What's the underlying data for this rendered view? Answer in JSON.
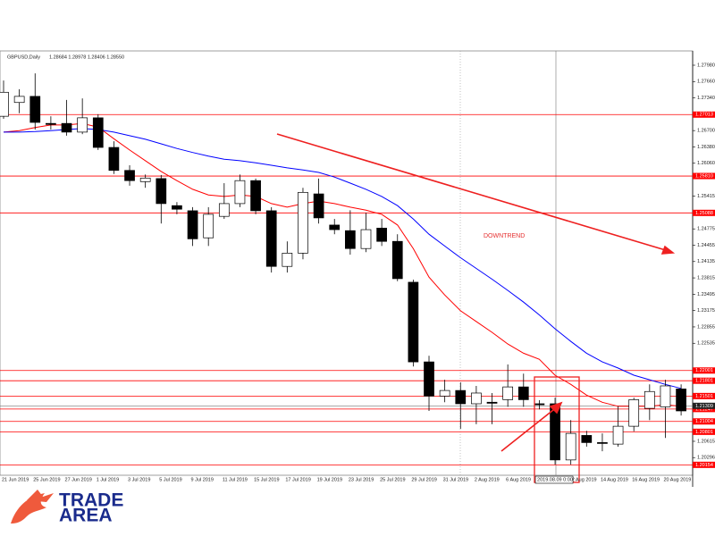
{
  "chart_data": {
    "type": "candlestick",
    "title": "GBPUSD,Daily",
    "header_values": "1.28684 1.28978 1.28406 1.28550",
    "annotation": "DOWNTREND",
    "crosshair_label": "2019.08.09 0:00",
    "categories": [
      "21 Jun 2019",
      null,
      "25 Jun 2019",
      null,
      "27 Jun 2019",
      null,
      "1 Jul 2019",
      null,
      "3 Jul 2019",
      null,
      "5 Jul 2019",
      null,
      "9 Jul 2019",
      null,
      "11 Jul 2019",
      null,
      "15 Jul 2019",
      null,
      "17 Jul 2019",
      null,
      "19 Jul 2019",
      null,
      "23 Jul 2019",
      null,
      "25 Jul 2019",
      null,
      "29 Jul 2019",
      null,
      "31 Jul 2019",
      null,
      "2 Aug 2019",
      null,
      "6 Aug 2019",
      null,
      null,
      null,
      "12 Aug 2019",
      null,
      "14 Aug 2019",
      null,
      "16 Aug 2019",
      null,
      "20 Aug 2019",
      null
    ],
    "open": [
      1.2698,
      1.2725,
      1.2737,
      1.2684,
      1.2684,
      1.2667,
      1.2695,
      1.2637,
      1.2592,
      1.257,
      1.2576,
      1.2523,
      1.2513,
      1.246,
      1.2502,
      1.2527,
      1.2572,
      1.2513,
      1.2404,
      1.243,
      1.2546,
      1.2485,
      1.2474,
      1.2439,
      1.2479,
      1.2453,
      1.2373,
      1.2217,
      1.215,
      1.2161,
      1.2135,
      1.2138,
      1.2143,
      1.2168,
      1.2135,
      1.2135,
      1.2025,
      1.2073,
      1.2059,
      1.2056,
      1.2091,
      1.2126,
      1.2129,
      1.2164
    ],
    "high": [
      1.2768,
      1.2751,
      1.2782,
      1.2698,
      1.273,
      1.2733,
      1.2702,
      1.2649,
      1.2602,
      1.2584,
      1.2583,
      1.253,
      1.252,
      1.252,
      1.2567,
      1.2584,
      1.2576,
      1.252,
      1.2453,
      1.2558,
      1.2576,
      1.2497,
      1.2514,
      1.2509,
      1.2497,
      1.2467,
      1.2378,
      1.2229,
      1.2182,
      1.2177,
      1.217,
      1.2156,
      1.2212,
      1.2194,
      1.2142,
      1.2147,
      1.2103,
      1.2082,
      1.2077,
      1.213,
      1.2147,
      1.2173,
      1.2182,
      1.2173
    ],
    "low": [
      1.2693,
      1.2704,
      1.2672,
      1.2672,
      1.266,
      1.2663,
      1.2632,
      1.2585,
      1.2562,
      1.2558,
      1.2488,
      1.2506,
      1.2444,
      1.2444,
      1.2497,
      1.252,
      1.2506,
      1.2392,
      1.2392,
      1.2418,
      1.2488,
      1.2467,
      1.2427,
      1.2432,
      1.2444,
      1.2375,
      1.2208,
      1.2121,
      1.2138,
      1.2086,
      1.2095,
      1.2095,
      1.2129,
      1.2129,
      1.2124,
      1.2016,
      1.2016,
      1.2051,
      1.2042,
      1.2051,
      1.2081,
      1.2103,
      1.2068,
      1.2112
    ],
    "close": [
      1.2745,
      1.2737,
      1.2686,
      1.2682,
      1.2667,
      1.2695,
      1.2637,
      1.2592,
      1.2572,
      1.2577,
      1.2527,
      1.2516,
      1.2458,
      1.2506,
      1.2527,
      1.2572,
      1.2513,
      1.2404,
      1.243,
      1.2549,
      1.2499,
      1.2476,
      1.2439,
      1.2476,
      1.2453,
      1.238,
      1.2217,
      1.215,
      1.2161,
      1.2135,
      1.2156,
      1.2136,
      1.2168,
      1.2143,
      1.2133,
      1.2025,
      1.2077,
      1.2059,
      1.2058,
      1.2091,
      1.2143,
      1.2159,
      1.217,
      1.2121
    ],
    "up_color": "#ffffff",
    "down_color": "#000000",
    "series": [
      {
        "color": "#ff0000",
        "values": [
          1.2667,
          1.267,
          1.2676,
          1.2681,
          1.2681,
          1.2684,
          1.2677,
          1.2654,
          1.2632,
          1.2611,
          1.259,
          1.2572,
          1.2555,
          1.2544,
          1.2541,
          1.2544,
          1.2541,
          1.2527,
          1.252,
          1.2527,
          1.2532,
          1.2527,
          1.252,
          1.2514,
          1.2506,
          1.2485,
          1.2439,
          1.2383,
          1.2348,
          1.2317,
          1.2296,
          1.2275,
          1.2252,
          1.2234,
          1.2222,
          1.2191,
          1.2173,
          1.2152,
          1.2138,
          1.213,
          1.213,
          1.213,
          1.2133,
          1.213
        ]
      },
      {
        "color": "#0000ff",
        "values": [
          1.2667,
          1.2667,
          1.2668,
          1.267,
          1.2672,
          1.2674,
          1.2672,
          1.2667,
          1.266,
          1.2653,
          1.2644,
          1.2635,
          1.2627,
          1.262,
          1.2614,
          1.2611,
          1.2607,
          1.2602,
          1.2597,
          1.2593,
          1.2588,
          1.2579,
          1.2567,
          1.2555,
          1.2541,
          1.2523,
          1.2497,
          1.2467,
          1.2444,
          1.2421,
          1.24,
          1.2379,
          1.2357,
          1.2334,
          1.2309,
          1.2282,
          1.2257,
          1.2234,
          1.2217,
          1.2205,
          1.2191,
          1.2182,
          1.2173,
          1.2165
        ]
      }
    ],
    "ylim": [
      1.1995,
      1.2826
    ],
    "yticks": [
      {
        "value": 1.2798,
        "label": "1.27980"
      },
      {
        "value": 1.2766,
        "label": "1.27660"
      },
      {
        "value": 1.2734,
        "label": "1.27340"
      },
      {
        "value": 1.267,
        "label": "1.26700"
      },
      {
        "value": 1.2638,
        "label": "1.26380"
      },
      {
        "value": 1.2606,
        "label": "1.26060"
      },
      {
        "value": 1.25415,
        "label": "1.25415"
      },
      {
        "value": 1.24775,
        "label": "1.24775"
      },
      {
        "value": 1.24455,
        "label": "1.24455"
      },
      {
        "value": 1.24135,
        "label": "1.24135"
      },
      {
        "value": 1.23815,
        "label": "1.23815"
      },
      {
        "value": 1.23495,
        "label": "1.23495"
      },
      {
        "value": 1.23175,
        "label": "1.23175"
      },
      {
        "value": 1.22855,
        "label": "1.22855"
      },
      {
        "value": 1.22535,
        "label": "1.22535"
      },
      {
        "value": 1.20615,
        "label": "1.20615"
      },
      {
        "value": 1.20296,
        "label": "1.20296"
      }
    ],
    "level_color": "#ff0000",
    "levels": [
      {
        "value": 1.27013,
        "label": "1.27013"
      },
      {
        "value": 1.2581,
        "label": "1.25810"
      },
      {
        "value": 1.25088,
        "label": "1.25088"
      },
      {
        "value": 1.22001,
        "label": "1.22001"
      },
      {
        "value": 1.21801,
        "label": "1.21801"
      },
      {
        "value": 1.21501,
        "label": "1.21501"
      },
      {
        "value": 1.21247,
        "label": "1.21247"
      },
      {
        "value": 1.21004,
        "label": "1.21004"
      },
      {
        "value": 1.20801,
        "label": "1.20801"
      },
      {
        "value": 1.20154,
        "label": "1.20154"
      }
    ],
    "current_price": {
      "value": 1.21309,
      "label": "1.21309"
    }
  },
  "logo": {
    "line1": "TRADE",
    "line2": "AREA"
  }
}
